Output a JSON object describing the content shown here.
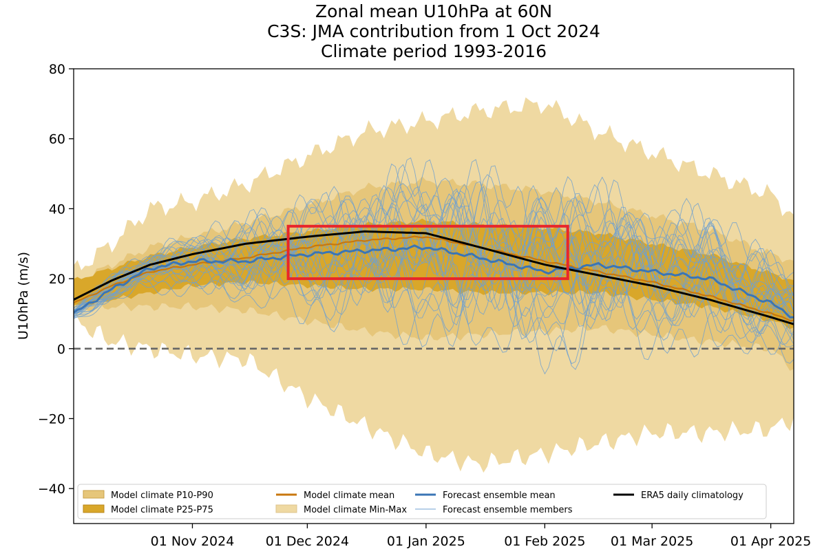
{
  "chart_data": {
    "type": "area",
    "title": "Zonal mean U10hPa at 60N",
    "subtitle_1": "C3S: JMA contribution from 1 Oct 2024",
    "subtitle_2": "Climate period 1993-2016",
    "xlabel": "",
    "ylabel": "U10hPa (m/s)",
    "x_start": "2024-10-01",
    "x_end": "2025-04-07",
    "xlim_days": [
      0,
      188
    ],
    "ylim": [
      -50,
      80
    ],
    "yticks": [
      -40,
      -20,
      0,
      20,
      40,
      60,
      80
    ],
    "ytick_labels": [
      "−40",
      "−20",
      "0",
      "20",
      "40",
      "60",
      "80"
    ],
    "xticks": [
      {
        "day": 31,
        "label": "01 Nov 2024"
      },
      {
        "day": 61,
        "label": "01 Dec 2024"
      },
      {
        "day": 92,
        "label": "01 Jan 2025"
      },
      {
        "day": 123,
        "label": "01 Feb 2025"
      },
      {
        "day": 151,
        "label": "01 Mar 2025"
      },
      {
        "day": 182,
        "label": "01 Apr 2025"
      }
    ],
    "x_days": [
      0,
      10,
      20,
      31,
      45,
      61,
      76,
      92,
      106,
      123,
      137,
      151,
      166,
      182,
      188
    ],
    "series": [
      {
        "name": "Model climate Min-Max",
        "kind": "band",
        "color": "#efd9a2",
        "low": [
          8,
          2,
          0,
          -2,
          -3,
          -14,
          -22,
          -30,
          -33,
          -30,
          -27,
          -24,
          -24,
          -23,
          -20
        ],
        "high": [
          22,
          30,
          40,
          42,
          47,
          55,
          62,
          65,
          68,
          70,
          62,
          56,
          50,
          44,
          38
        ]
      },
      {
        "name": "Model climate P10-P90",
        "kind": "band",
        "color": "#e6c67a",
        "low": [
          11,
          12,
          12,
          12,
          11,
          8,
          5,
          3,
          4,
          5,
          6,
          4,
          2,
          0,
          -6
        ],
        "high": [
          19,
          24,
          29,
          32,
          36,
          41,
          46,
          48,
          47,
          45,
          42,
          38,
          34,
          27,
          25
        ]
      },
      {
        "name": "Model climate P25-P75",
        "kind": "band",
        "color": "#d9a72a",
        "low": [
          12,
          14,
          16,
          18,
          19,
          18,
          17,
          17,
          16,
          16,
          16,
          14,
          12,
          8,
          6
        ]
      },
      {
        "name": "Model climate mean",
        "kind": "line",
        "color": "#c8770e",
        "values": [
          13,
          18,
          22,
          24,
          26,
          29,
          31,
          32,
          29,
          25,
          22,
          19,
          15,
          10,
          8
        ]
      },
      {
        "name": "Forecast ensemble mean",
        "kind": "line",
        "color": "#3a75b5",
        "values": [
          10,
          17,
          23,
          25,
          25,
          27,
          28,
          29,
          26,
          22,
          24,
          22,
          20,
          13,
          9
        ]
      },
      {
        "name": "Forecast ensemble members",
        "kind": "spaghetti",
        "color": "#6fa0d0",
        "center": [
          10,
          17,
          23,
          25,
          25,
          27,
          28,
          29,
          26,
          22,
          24,
          22,
          20,
          13,
          9
        ],
        "spread": [
          2,
          4,
          6,
          8,
          12,
          16,
          20,
          23,
          24,
          24,
          22,
          20,
          18,
          15,
          12
        ],
        "member_count": 25
      },
      {
        "name": "ERA5 daily climatology",
        "kind": "line",
        "color": "#000000",
        "values": [
          14,
          19.5,
          24,
          27,
          30,
          32,
          33.5,
          33,
          29,
          24,
          21,
          18,
          14,
          9,
          7
        ]
      }
    ],
    "legend": [
      {
        "label": "Model climate P10-P90",
        "kind": "patch",
        "color": "#e6c67a",
        "edge": "#c9a14a"
      },
      {
        "label": "Model climate P25-P75",
        "kind": "patch",
        "color": "#d9a72a",
        "edge": "#b8861a"
      },
      {
        "label": "Model climate mean",
        "kind": "line",
        "color": "#c8770e"
      },
      {
        "label": "Model climate Min-Max",
        "kind": "patch",
        "color": "#efd9a2",
        "edge": "#ddc48c"
      },
      {
        "label": "Forecast ensemble mean",
        "kind": "line",
        "color": "#3a75b5"
      },
      {
        "label": "Forecast ensemble members",
        "kind": "thinline",
        "color": "#6fa0d0"
      },
      {
        "label": "ERA5 daily climatology",
        "kind": "line",
        "color": "#000000"
      }
    ],
    "legend_placement": "lower-center",
    "zero_line": {
      "value": 0,
      "color": "#666666",
      "style": "dashed"
    },
    "highlight_box": {
      "day_start": 56,
      "day_end": 129,
      "y_low": 20,
      "y_high": 35,
      "color": "#e8262a"
    },
    "grid": false
  }
}
